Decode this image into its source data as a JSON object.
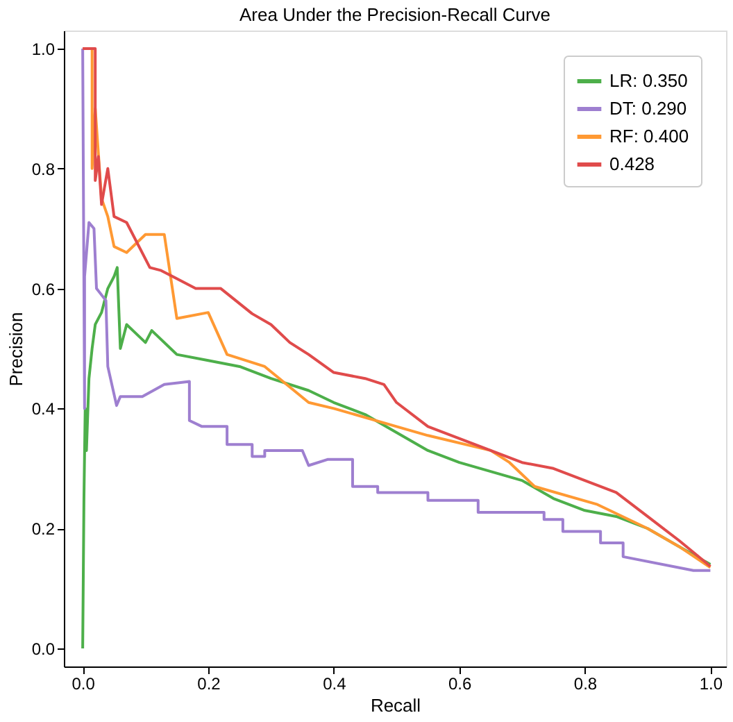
{
  "chart_data": {
    "type": "line",
    "title": "Area Under the Precision-Recall Curve",
    "xlabel": "Recall",
    "ylabel": "Precision",
    "xlim": [
      -0.03,
      1.025
    ],
    "ylim": [
      -0.03,
      1.03
    ],
    "xticks": [
      {
        "value": 0,
        "label": "0.0"
      },
      0.2,
      0.4,
      0.6,
      0.8,
      {
        "value": 1,
        "label": "1.0"
      }
    ],
    "yticks": [
      {
        "value": 0,
        "label": "0.0"
      },
      0.2,
      0.4,
      0.6,
      0.8,
      {
        "value": 1,
        "label": "1.0"
      }
    ],
    "grid": false,
    "legend": "top right",
    "marker": "none",
    "line_style": "solid",
    "series": [
      {
        "name": "LR: 0.350",
        "color": "#4daf4a",
        "x": [
          0,
          0.002,
          0.004,
          0.006,
          0.01,
          0.015,
          0.02,
          0.03,
          0.04,
          0.05,
          0.055,
          0.06,
          0.07,
          0.08,
          0.1,
          0.11,
          0.15,
          0.2,
          0.25,
          0.3,
          0.36,
          0.4,
          0.45,
          0.5,
          0.55,
          0.6,
          0.7,
          0.75,
          0.8,
          0.85,
          0.9,
          0.95,
          1.0
        ],
        "values": [
          0,
          0.25,
          0.4,
          0.33,
          0.45,
          0.5,
          0.54,
          0.56,
          0.6,
          0.62,
          0.635,
          0.5,
          0.54,
          0.53,
          0.51,
          0.53,
          0.49,
          0.48,
          0.47,
          0.45,
          0.43,
          0.41,
          0.39,
          0.36,
          0.33,
          0.31,
          0.28,
          0.25,
          0.23,
          0.22,
          0.2,
          0.17,
          0.14
        ]
      },
      {
        "name": "DT: 0.290",
        "color": "#9e7fd0",
        "x": [
          0,
          0.003,
          0.003,
          0.01,
          0.018,
          0.022,
          0.037,
          0.04,
          0.054,
          0.06,
          0.095,
          0.13,
          0.17,
          0.17,
          0.19,
          0.23,
          0.23,
          0.27,
          0.27,
          0.29,
          0.29,
          0.35,
          0.36,
          0.39,
          0.43,
          0.43,
          0.47,
          0.47,
          0.55,
          0.55,
          0.63,
          0.63,
          0.735,
          0.735,
          0.765,
          0.765,
          0.825,
          0.825,
          0.861,
          0.861,
          0.973,
          0.973,
          1.0
        ],
        "values": [
          1.0,
          0.4,
          0.62,
          0.71,
          0.7,
          0.6,
          0.58,
          0.47,
          0.405,
          0.42,
          0.42,
          0.44,
          0.445,
          0.38,
          0.37,
          0.37,
          0.34,
          0.34,
          0.32,
          0.32,
          0.33,
          0.33,
          0.305,
          0.315,
          0.315,
          0.27,
          0.27,
          0.26,
          0.26,
          0.247,
          0.247,
          0.227,
          0.227,
          0.215,
          0.215,
          0.195,
          0.195,
          0.176,
          0.176,
          0.153,
          0.13,
          0.13,
          0.13
        ]
      },
      {
        "name": "RF: 0.400",
        "color": "#ff9933",
        "x": [
          0,
          0.015,
          0.015,
          0.02,
          0.03,
          0.04,
          0.05,
          0.07,
          0.1,
          0.13,
          0.15,
          0.2,
          0.23,
          0.29,
          0.36,
          0.4,
          0.5,
          0.55,
          0.65,
          0.68,
          0.72,
          0.82,
          0.9,
          0.95,
          1.0
        ],
        "values": [
          1.0,
          1.0,
          0.8,
          0.9,
          0.75,
          0.72,
          0.67,
          0.66,
          0.69,
          0.69,
          0.55,
          0.56,
          0.49,
          0.47,
          0.41,
          0.4,
          0.37,
          0.355,
          0.33,
          0.31,
          0.27,
          0.24,
          0.2,
          0.17,
          0.135
        ]
      },
      {
        "name": "0.428",
        "color": "#e04b4b",
        "x": [
          0,
          0.02,
          0.02,
          0.025,
          0.03,
          0.04,
          0.05,
          0.07,
          0.107,
          0.125,
          0.18,
          0.22,
          0.27,
          0.3,
          0.33,
          0.36,
          0.4,
          0.45,
          0.48,
          0.5,
          0.55,
          0.6,
          0.7,
          0.75,
          0.8,
          0.85,
          0.9,
          0.95,
          1.0
        ],
        "values": [
          1.0,
          1.0,
          0.78,
          0.82,
          0.74,
          0.8,
          0.72,
          0.71,
          0.635,
          0.63,
          0.6,
          0.6,
          0.558,
          0.54,
          0.51,
          0.49,
          0.46,
          0.45,
          0.44,
          0.41,
          0.37,
          0.35,
          0.31,
          0.3,
          0.28,
          0.26,
          0.22,
          0.18,
          0.137
        ]
      }
    ]
  }
}
